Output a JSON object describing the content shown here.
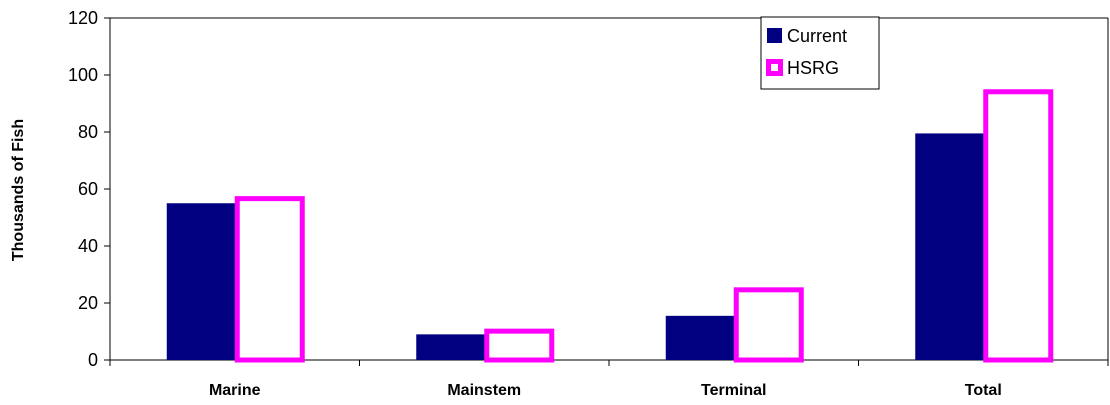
{
  "chart_data": {
    "type": "bar",
    "categories": [
      "Marine",
      "Mainstem",
      "Terminal",
      "Total"
    ],
    "series": [
      {
        "name": "Current",
        "values": [
          55,
          9,
          15.5,
          79.5
        ],
        "color": "#000080",
        "style": "filled"
      },
      {
        "name": "HSRG",
        "values": [
          57.5,
          11,
          25.5,
          95
        ],
        "color": "#ff00ff",
        "style": "outline"
      }
    ],
    "title": "",
    "xlabel": "",
    "ylabel": "Thousands of Fish",
    "ylim": [
      0,
      120
    ],
    "yticks": [
      0,
      20,
      40,
      60,
      80,
      100,
      120
    ],
    "grid": false,
    "legend_position": "top-right"
  }
}
